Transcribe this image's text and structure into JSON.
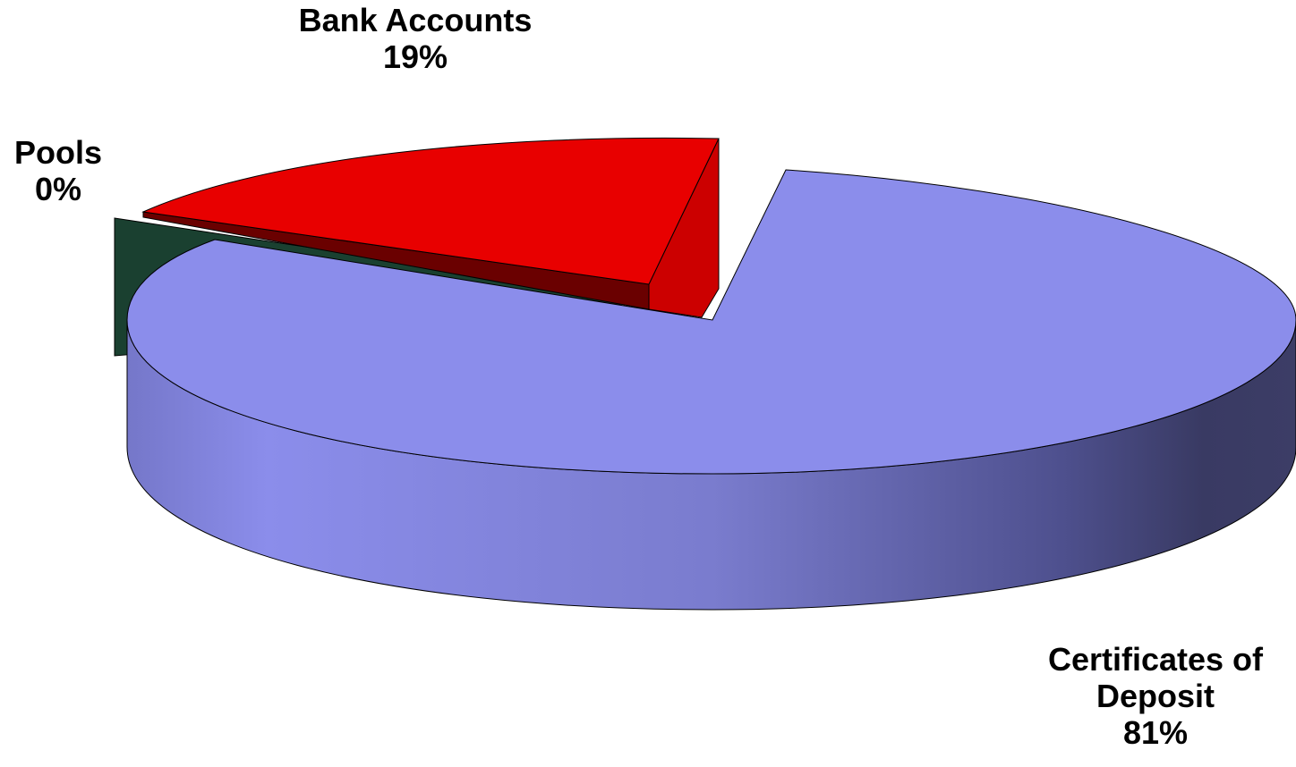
{
  "chart_data": {
    "type": "pie",
    "style": "3d-exploded",
    "categories": [
      "Certificates of Deposit",
      "Bank Accounts",
      "Pools"
    ],
    "values": [
      81,
      19,
      0
    ],
    "labels": [
      {
        "name": "Bank Accounts",
        "percent": "19%"
      },
      {
        "name": "Pools",
        "percent": "0%"
      },
      {
        "name": "Certificates of Deposit",
        "name_line1": "Certificates of",
        "name_line2": "Deposit",
        "percent": "81%"
      }
    ],
    "colors": {
      "certificates_of_deposit": "#8b8deb",
      "bank_accounts": "#e80000",
      "pools": "#1a4030"
    },
    "legend": "none",
    "grid": false
  }
}
